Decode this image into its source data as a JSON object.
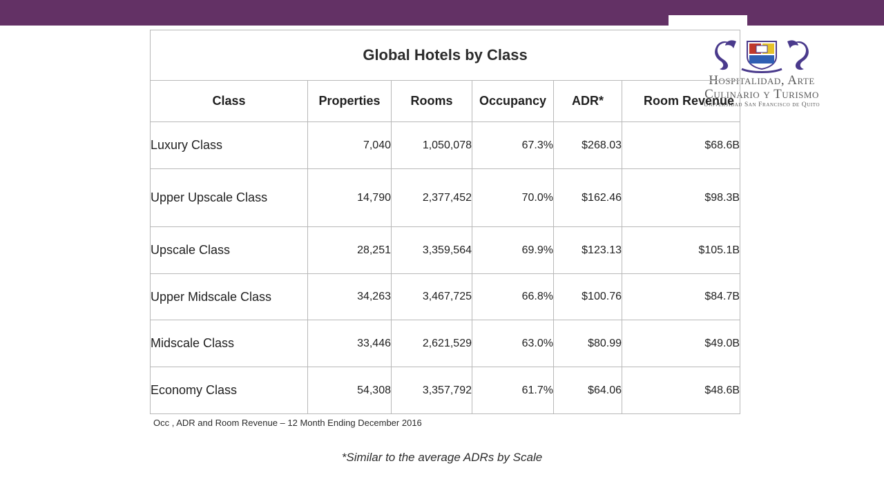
{
  "table": {
    "title": "Global Hotels by Class",
    "headers": [
      "Class",
      "Properties",
      "Rooms",
      "Occupancy",
      "ADR*",
      "Room Revenue"
    ],
    "rows": [
      {
        "class": "Luxury Class",
        "properties": "7,040",
        "rooms": "1,050,078",
        "occupancy": "67.3%",
        "adr": "$268.03",
        "revenue": "$68.6B"
      },
      {
        "class": "Upper Upscale Class",
        "properties": "14,790",
        "rooms": "2,377,452",
        "occupancy": "70.0%",
        "adr": "$162.46",
        "revenue": "$98.3B"
      },
      {
        "class": "Upscale Class",
        "properties": "28,251",
        "rooms": "3,359,564",
        "occupancy": "69.9%",
        "adr": "$123.13",
        "revenue": "$105.1B"
      },
      {
        "class": "Upper Midscale Class",
        "properties": "34,263",
        "rooms": "3,467,725",
        "occupancy": "66.8%",
        "adr": "$100.76",
        "revenue": "$84.7B"
      },
      {
        "class": "Midscale Class",
        "properties": "33,446",
        "rooms": "2,621,529",
        "occupancy": "63.0%",
        "adr": "$80.99",
        "revenue": "$49.0B"
      },
      {
        "class": "Economy Class",
        "properties": "54,308",
        "rooms": "3,357,792",
        "occupancy": "61.7%",
        "adr": "$64.06",
        "revenue": "$48.6B"
      }
    ]
  },
  "footnote": "Occ , ADR and Room Revenue – 12 Month Ending December 2016",
  "note": "*Similar to the average ADRs by Scale",
  "logo": {
    "line1": "Hospitalidad, Arte",
    "line2": "Culinario y Turismo",
    "line3": "Universidad San Francisco de Quito"
  },
  "colors": {
    "topbar": "#633165",
    "logo_purple": "#4a3a8c",
    "grid": "#b8b8b8"
  }
}
